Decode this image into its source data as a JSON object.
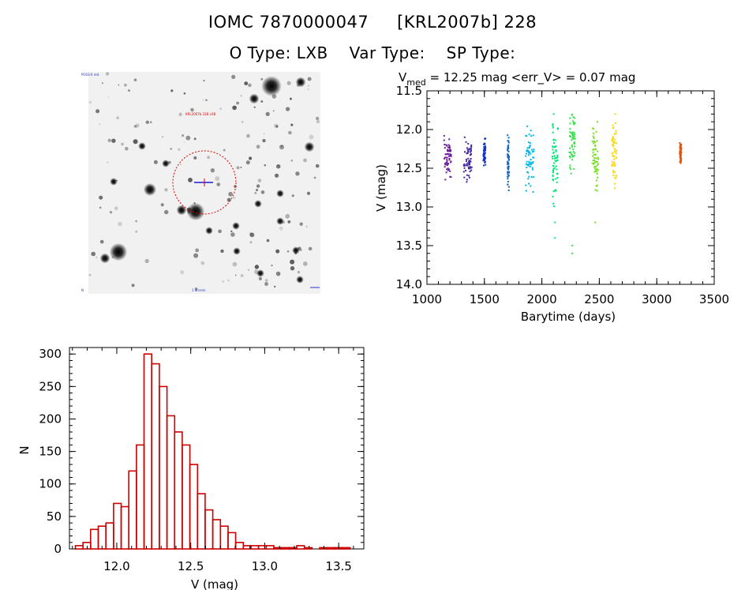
{
  "header": {
    "line1_name": "IOMC 7870000047",
    "line1_alias": "[KRL2007b] 228",
    "otype": "O Type: LXB",
    "vartype": "Var Type:",
    "sptype": "SP Type:"
  },
  "colors": {
    "histogram_bar": "#cc0000",
    "finder_circle": "#dd0000",
    "finder_cross": "#1a1ad8"
  },
  "finder": {
    "type": "sky image cutout"
  },
  "chart_data": [
    {
      "type": "scatter",
      "title_main": "V",
      "title_sub": "med",
      "title_rest": " = 12.25 mag <err_V> = 0.07 mag",
      "xlabel": "Barytime (days)",
      "ylabel": "V (mag)",
      "xlim": [
        1000,
        3500
      ],
      "ylim": [
        14.0,
        11.5
      ],
      "y_reversed": true,
      "xticks": [
        "1000",
        "1500",
        "2000",
        "2500",
        "3000",
        "3500"
      ],
      "yticks": [
        "11.5",
        "12.0",
        "12.5",
        "13.0",
        "13.5",
        "14.0"
      ],
      "series": [
        {
          "color": "#6a1b9a",
          "x_range": [
            1150,
            1210
          ],
          "v_min": 12.0,
          "v_max": 12.7
        },
        {
          "color": "#4527a0",
          "x_range": [
            1320,
            1390
          ],
          "v_min": 12.1,
          "v_max": 12.72
        },
        {
          "color": "#1535c8",
          "x_range": [
            1490,
            1510
          ],
          "v_min": 12.1,
          "v_max": 12.5
        },
        {
          "color": "#1565c0",
          "x_range": [
            1700,
            1715
          ],
          "v_min": 12.05,
          "v_max": 12.8
        },
        {
          "color": "#00b8e6",
          "x_range": [
            1860,
            1930
          ],
          "v_min": 11.95,
          "v_max": 12.85
        },
        {
          "color": "#00e676",
          "x_range": [
            2090,
            2140
          ],
          "v_min": 11.8,
          "v_max": 13.0,
          "outliers": [
            13.2,
            13.4
          ]
        },
        {
          "color": "#33e34a",
          "x_range": [
            2240,
            2290
          ],
          "v_min": 11.75,
          "v_max": 12.6,
          "outliers": [
            13.5,
            13.6
          ]
        },
        {
          "color": "#76e21f",
          "x_range": [
            2440,
            2490
          ],
          "v_min": 11.9,
          "v_max": 12.8,
          "outliers": [
            13.2
          ]
        },
        {
          "color": "#ffd600",
          "x_range": [
            2610,
            2650
          ],
          "v_min": 11.8,
          "v_max": 12.8
        },
        {
          "color": "#e65100",
          "x_range": [
            3200,
            3215
          ],
          "v_min": 12.15,
          "v_max": 12.45
        }
      ]
    },
    {
      "type": "bar",
      "subtype": "histogram",
      "xlabel": "V (mag)",
      "ylabel": "N",
      "xlim": [
        11.68,
        13.67
      ],
      "ylim": [
        0,
        310
      ],
      "bin_width": 0.0516,
      "bin_start": 11.72,
      "xticks": [
        "12.0",
        "12.5",
        "13.0",
        "13.5"
      ],
      "yticks": [
        "0",
        "50",
        "100",
        "150",
        "200",
        "250",
        "300"
      ],
      "values": [
        5,
        10,
        30,
        35,
        40,
        70,
        65,
        120,
        160,
        300,
        285,
        250,
        205,
        180,
        160,
        130,
        85,
        60,
        45,
        35,
        25,
        10,
        5,
        5,
        5,
        5,
        2,
        2,
        2,
        5,
        2,
        0,
        2,
        2,
        2,
        2,
        0
      ]
    }
  ]
}
